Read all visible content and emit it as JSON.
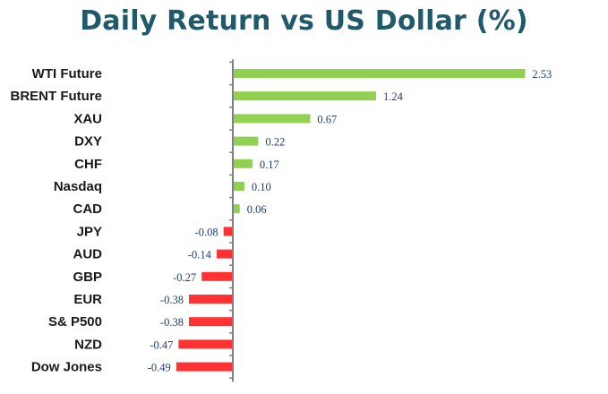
{
  "chart_data": {
    "type": "bar",
    "orientation": "horizontal",
    "title": "Daily Return vs US Dollar (%)",
    "categories": [
      "WTI Future",
      "BRENT Future",
      "XAU",
      "DXY",
      "CHF",
      "Nasdaq",
      "CAD",
      "JPY",
      "AUD",
      "GBP",
      "EUR",
      "S& P500",
      "NZD",
      "Dow Jones"
    ],
    "values": [
      2.53,
      1.24,
      0.67,
      0.22,
      0.17,
      0.1,
      0.06,
      -0.08,
      -0.14,
      -0.27,
      -0.38,
      -0.38,
      -0.47,
      -0.49
    ],
    "value_labels": [
      "2.53",
      "1.24",
      "0.67",
      "0.22",
      "0.17",
      "0.10",
      "0.06",
      "-0.08",
      "-0.14",
      "-0.27",
      "-0.38",
      "-0.38",
      "-0.47",
      "-0.49"
    ],
    "xlabel": "",
    "ylabel": "",
    "xlim": [
      -0.49,
      2.53
    ],
    "grid": false,
    "colors": {
      "positive": "#92d050",
      "negative": "#ff3333",
      "axis": "#808080",
      "title": "#1f5a6b"
    }
  }
}
